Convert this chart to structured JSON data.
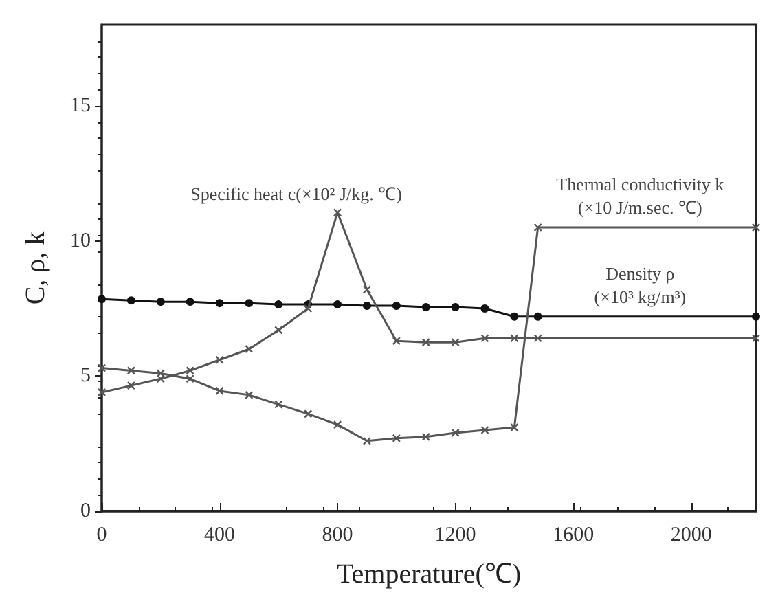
{
  "chart_data": {
    "type": "line",
    "xlabel": "Temperature(℃)",
    "ylabel": "C, ρ, k",
    "xlim": [
      0,
      2220
    ],
    "ylim": [
      0,
      18
    ],
    "xticks": [
      0,
      400,
      800,
      1200,
      1600,
      2000
    ],
    "yticks": [
      0,
      5,
      10,
      15
    ],
    "grid": false,
    "legend": false,
    "series": [
      {
        "name": "Specific heat c(×10² J/kg. ℃)",
        "color": "#555555",
        "marker": "cross",
        "x": [
          0,
          100,
          200,
          300,
          400,
          500,
          600,
          700,
          800,
          900,
          1000,
          1100,
          1200,
          1300,
          1400,
          1480,
          2220
        ],
        "values": [
          4.4,
          4.65,
          4.9,
          5.2,
          5.6,
          6.0,
          6.7,
          7.5,
          11.05,
          8.2,
          6.3,
          6.25,
          6.25,
          6.4,
          6.4,
          6.4,
          6.4
        ]
      },
      {
        "name": "Thermal conductivity k\n(×10 J/m.sec. ℃)",
        "color": "#555555",
        "marker": "cross",
        "x": [
          0,
          100,
          200,
          300,
          400,
          500,
          600,
          700,
          800,
          900,
          1000,
          1100,
          1200,
          1300,
          1400,
          1480,
          2220
        ],
        "values": [
          5.3,
          5.2,
          5.1,
          4.9,
          4.45,
          4.3,
          3.95,
          3.6,
          3.2,
          2.6,
          2.7,
          2.75,
          2.9,
          3.0,
          3.1,
          10.5,
          10.5
        ]
      },
      {
        "name": "Density ρ\n(×10³ kg/m³)",
        "color": "#111111",
        "marker": "circle",
        "x": [
          0,
          100,
          200,
          300,
          400,
          500,
          600,
          700,
          800,
          900,
          1000,
          1100,
          1200,
          1300,
          1400,
          1480,
          2220
        ],
        "values": [
          7.85,
          7.8,
          7.75,
          7.75,
          7.7,
          7.7,
          7.65,
          7.65,
          7.65,
          7.6,
          7.6,
          7.55,
          7.55,
          7.5,
          7.2,
          7.2,
          7.2
        ]
      }
    ]
  }
}
